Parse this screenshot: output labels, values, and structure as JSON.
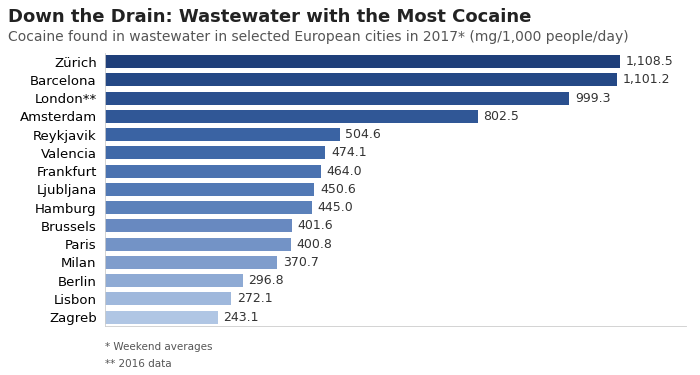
{
  "chart_data": {
    "type": "bar",
    "orientation": "horizontal",
    "title": "Down the Drain: Wastewater with the Most Cocaine",
    "subtitle": "Cocaine found in wastewater in selected European cities in 2017* (mg/1,000 people/day)",
    "categories": [
      "Zürich",
      "Barcelona",
      "London**",
      "Amsterdam",
      "Reykjavik",
      "Valencia",
      "Frankfurt",
      "Ljubljana",
      "Hamburg",
      "Brussels",
      "Paris",
      "Milan",
      "Berlin",
      "Lisbon",
      "Zagreb"
    ],
    "values": [
      1108.5,
      1101.2,
      999.3,
      802.5,
      504.6,
      474.1,
      464.0,
      450.6,
      445.0,
      401.6,
      400.8,
      370.7,
      296.8,
      272.1,
      243.1
    ],
    "value_labels": [
      "1,108.5",
      "1,101.2",
      "999.3",
      "802.5",
      "504.6",
      "474.1",
      "464.0",
      "450.6",
      "445.0",
      "401.6",
      "400.8",
      "370.7",
      "296.8",
      "272.1",
      "243.1"
    ],
    "colors": [
      "#1f3f7a",
      "#244885",
      "#2a4f8e",
      "#305796",
      "#3a63a3",
      "#4069a8",
      "#4a72b0",
      "#5279b5",
      "#5b81ba",
      "#6889c0",
      "#7393c6",
      "#7f9dcc",
      "#8eaad4",
      "#9fb8dc",
      "#b0c6e4"
    ],
    "xlim": [
      0,
      1250
    ],
    "xticks": [],
    "data_labels": true,
    "tick_labels": "y",
    "grid": false,
    "annotations": [
      "* Weekend averages",
      "** 2016 data"
    ]
  }
}
